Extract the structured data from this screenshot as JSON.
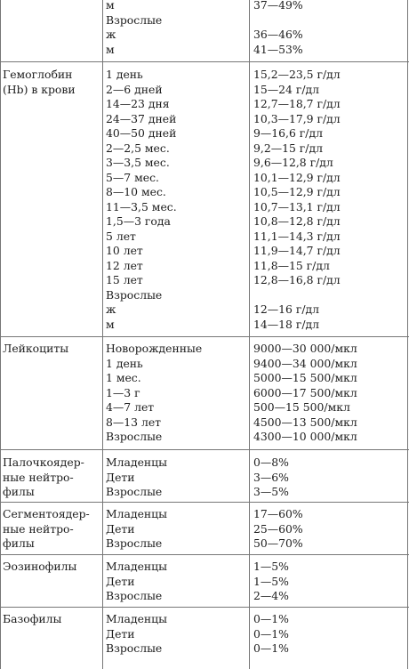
{
  "sections": [
    {
      "param": [],
      "groups": [
        "м",
        "Взрослые",
        "ж",
        "м"
      ],
      "values": [
        "37—49%",
        "",
        "36—46%",
        "41—53%"
      ]
    },
    {
      "param": [
        "Гемоглобин",
        "(Hb) в крови"
      ],
      "groups": [
        "1 день",
        "2—6 дней",
        "14—23 дня",
        "24—37 дней",
        "40—50 дней",
        "2—2,5 мес.",
        "3—3,5 мес.",
        "5—7 мес.",
        "8—10 мес.",
        "11—3,5 мес.",
        "1,5—3 года",
        "5 лет",
        "10 лет",
        "12 лет",
        "15 лет",
        "Взрослые",
        "ж",
        "м"
      ],
      "values": [
        "15,2—23,5 г/дл",
        "15—24 г/дл",
        "12,7—18,7 г/дл",
        "10,3—17,9 г/дл",
        "9—16,6 г/дл",
        "9,2—15 г/дл",
        "9,6—12,8 г/дл",
        "10,1—12,9 г/дл",
        "10,5—12,9 г/дл",
        "10,7—13,1 г/дл",
        "10,8—12,8 г/дл",
        "11,1—14,3 г/дл",
        "11,9—14,7 г/дл",
        "11,8—15 г/дл",
        "12,8—16,8 г/дл",
        "",
        "12—16 г/дл",
        "14—18 г/дл"
      ]
    },
    {
      "param": [
        "Лейкоциты"
      ],
      "groups": [
        "Новорожденные",
        "1 день",
        "1 мес.",
        "1—3 г",
        "4—7 лет",
        "8—13 лет",
        "Взрослые"
      ],
      "values": [
        "9000—30 000/мкл",
        "9400—34 000/мкл",
        "5000—15 500/мкл",
        "6000—17 500/мкл",
        "500—15 500/мкл",
        "4500—13 500/мкл",
        "4300—10 000/мкл"
      ]
    },
    {
      "param": [
        "Палочкоядер-",
        "ные нейтро-",
        "филы"
      ],
      "groups": [
        "Младенцы",
        "Дети",
        "Взрослые"
      ],
      "values": [
        "0—8%",
        "3—6%",
        "3—5%"
      ]
    },
    {
      "param": [
        "Сегментоядер-",
        "ные нейтро-",
        "филы"
      ],
      "groups": [
        "Младенцы",
        "Дети",
        "Взрослые"
      ],
      "values": [
        "17—60%",
        "25—60%",
        "50—70%"
      ]
    },
    {
      "param": [
        "Эозинофилы"
      ],
      "groups": [
        "Младенцы",
        "Дети",
        "Взрослые"
      ],
      "values": [
        "1—5%",
        "1—5%",
        "2—4%"
      ]
    },
    {
      "param": [
        "Базофилы"
      ],
      "groups": [
        "Младенцы",
        "Дети",
        "Взрослые"
      ],
      "values": [
        "0—1%",
        "0—1%",
        "0—1%"
      ]
    }
  ]
}
